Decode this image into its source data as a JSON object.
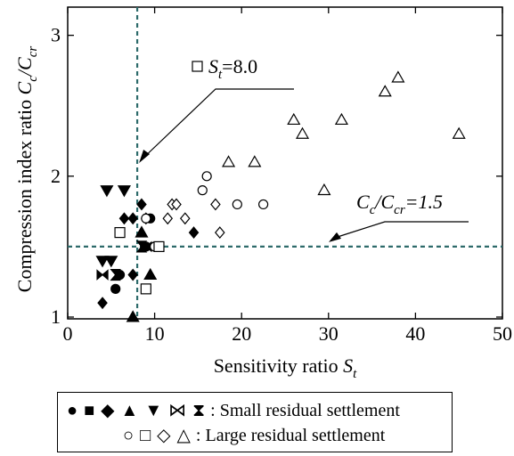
{
  "chart_data": {
    "type": "scatter",
    "title": "",
    "xlabel": "Sensitivity ratio",
    "xlabel_symbol": "S",
    "xlabel_subscript": "t",
    "ylabel": "Compression index ratio",
    "ylabel_symbol_num": "C",
    "ylabel_sub_num": "c",
    "ylabel_symbol_den": "C",
    "ylabel_sub_den": "cr",
    "xlim": [
      0,
      50
    ],
    "ylim": [
      1,
      3.2
    ],
    "x_ticks": [
      0,
      10,
      20,
      30,
      40,
      50
    ],
    "x_tick_labels": [
      "0",
      "10",
      "20",
      "30",
      "40",
      "50"
    ],
    "y_ticks": [
      1,
      2,
      3
    ],
    "y_tick_labels": [
      "1",
      "2",
      "3"
    ],
    "reference_lines": [
      {
        "orientation": "vertical",
        "value": 8.0,
        "label_symbol": "S",
        "label_subscript": "t",
        "label_value": "=8.0",
        "color": "#2e6b6b"
      },
      {
        "orientation": "horizontal",
        "value": 1.5,
        "label_symbol_num": "C",
        "label_sub_num": "c",
        "label_symbol_den": "C",
        "label_sub_den": "cr",
        "label_value": "=1.5",
        "color": "#2e6b6b"
      }
    ],
    "series": [
      {
        "name": "Small residual settlement",
        "marker": "circle-filled",
        "points": [
          [
            6.0,
            1.3
          ],
          [
            5.5,
            1.2
          ],
          [
            9.5,
            1.7
          ],
          [
            9.0,
            1.5
          ]
        ]
      },
      {
        "name": "Small residual settlement",
        "marker": "square-filled",
        "points": []
      },
      {
        "name": "Small residual settlement",
        "marker": "diamond-filled",
        "points": [
          [
            4.0,
            1.1
          ],
          [
            6.5,
            1.7
          ],
          [
            7.5,
            1.7
          ],
          [
            8.5,
            1.8
          ],
          [
            9.0,
            1.7
          ],
          [
            7.5,
            1.3
          ],
          [
            14.5,
            1.6
          ]
        ]
      },
      {
        "name": "Small residual settlement",
        "marker": "triangle-up-filled",
        "points": [
          [
            9.5,
            1.3
          ],
          [
            7.5,
            1.0
          ],
          [
            8.5,
            1.6
          ]
        ]
      },
      {
        "name": "Small residual settlement",
        "marker": "triangle-down-filled",
        "points": [
          [
            4.5,
            1.9
          ],
          [
            6.5,
            1.9
          ],
          [
            4.0,
            1.4
          ],
          [
            5.0,
            1.4
          ]
        ]
      },
      {
        "name": "Small residual settlement",
        "marker": "bowtie-filled",
        "points": [
          [
            4.0,
            1.3
          ],
          [
            9.0,
            1.5
          ]
        ]
      },
      {
        "name": "Small residual settlement",
        "marker": "hourglass-filled",
        "points": [
          [
            5.5,
            1.3
          ],
          [
            8.5,
            1.5
          ]
        ]
      },
      {
        "name": "Large residual settlement",
        "marker": "circle-open",
        "points": [
          [
            9.0,
            1.7
          ],
          [
            10.0,
            1.5
          ],
          [
            15.5,
            1.9
          ],
          [
            16.0,
            2.0
          ],
          [
            19.5,
            1.8
          ],
          [
            22.5,
            1.8
          ]
        ]
      },
      {
        "name": "Large residual settlement",
        "marker": "square-open",
        "points": [
          [
            6.0,
            1.6
          ],
          [
            9.0,
            1.2
          ],
          [
            10.5,
            1.5
          ]
        ]
      },
      {
        "name": "Large residual settlement",
        "marker": "diamond-open",
        "points": [
          [
            12.0,
            1.8
          ],
          [
            12.5,
            1.8
          ],
          [
            11.5,
            1.7
          ],
          [
            13.5,
            1.7
          ],
          [
            17.0,
            1.8
          ],
          [
            17.5,
            1.6
          ]
        ]
      },
      {
        "name": "Large residual settlement",
        "marker": "triangle-up-open",
        "points": [
          [
            18.5,
            2.1
          ],
          [
            21.5,
            2.1
          ],
          [
            26.0,
            2.4
          ],
          [
            27.0,
            2.3
          ],
          [
            29.5,
            1.9
          ],
          [
            31.5,
            2.4
          ],
          [
            36.5,
            2.6
          ],
          [
            38.0,
            2.7
          ],
          [
            45.0,
            2.3
          ]
        ]
      }
    ],
    "annotations": [
      {
        "target_line": "St",
        "arrow": true
      },
      {
        "target_line": "Cc/Ccr",
        "arrow": true
      }
    ],
    "grid": false,
    "legend_placement": "bottom"
  },
  "legend": {
    "small_symbols": "● ■ ◆ ▲ ▼ ⋈ ⧗",
    "small_label": ": Small residual settlement",
    "large_symbols": "○ □ ◇ △",
    "large_label": ": Large residual settlement"
  }
}
